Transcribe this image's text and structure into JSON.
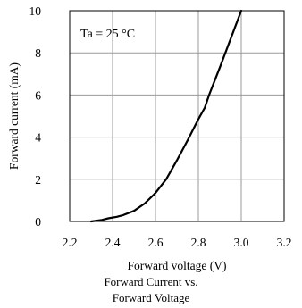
{
  "chart_data": {
    "type": "line",
    "xlabel": "Forward voltage (V)",
    "ylabel": "Forward current (mA)",
    "annotation": "Ta = 25 °C",
    "xlim": [
      2.2,
      3.2
    ],
    "ylim": [
      0,
      10
    ],
    "x_ticks": [
      "2.2",
      "2.4",
      "2.6",
      "2.8",
      "3.0",
      "3.2"
    ],
    "y_ticks": [
      "0",
      "2",
      "4",
      "6",
      "8",
      "10"
    ],
    "grid": true,
    "series": [
      {
        "x": [
          2.3,
          2.35,
          2.38,
          2.42,
          2.45,
          2.5,
          2.55,
          2.6,
          2.65,
          2.7,
          2.75,
          2.8,
          2.83,
          2.85,
          2.9,
          2.95,
          3.0
        ],
        "y": [
          0.0,
          0.07,
          0.15,
          0.22,
          0.3,
          0.5,
          0.85,
          1.35,
          2.0,
          2.9,
          3.85,
          4.85,
          5.4,
          6.0,
          7.3,
          8.65,
          10.0
        ]
      }
    ]
  },
  "caption": {
    "line1": "Forward Current vs.",
    "line2": "Forward Voltage"
  },
  "colors": {
    "curve": "#000000",
    "grid": "#9a9a9a",
    "frame": "#000000"
  }
}
